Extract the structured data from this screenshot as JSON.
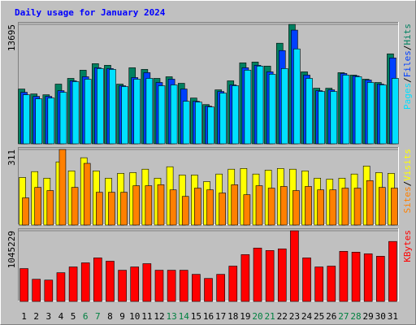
{
  "chart_data": [
    {
      "type": "bar",
      "title": "Daily usage for January 2024",
      "ylim": [
        0,
        13976
      ],
      "yticks": [
        13695
      ],
      "legend_separator": "/",
      "series": [
        {
          "name": "Hits",
          "color": "#008060",
          "values": [
            6285,
            5722,
            5628,
            6847,
            7504,
            8442,
            9192,
            9005,
            6847,
            8723,
            8536,
            7504,
            7692,
            6941,
            5253,
            4502,
            6191,
            7223,
            9286,
            9380,
            8911,
            11537,
            13695,
            8254,
            6378,
            6378,
            8161,
            7879,
            7410,
            7035,
            10318
          ]
        },
        {
          "name": "Files",
          "color": "#0040ff",
          "values": [
            5909,
            5440,
            5440,
            6097,
            7223,
            7692,
            8723,
            8630,
            6660,
            7598,
            8161,
            7035,
            7410,
            6285,
            4878,
            4315,
            6003,
            6754,
            8723,
            9005,
            8254,
            10693,
            13038,
            7879,
            6097,
            6191,
            8067,
            7785,
            7316,
            6847,
            9849
          ]
        },
        {
          "name": "Pages",
          "color": "#00e0ff",
          "values": [
            5628,
            5159,
            5253,
            5909,
            7129,
            7410,
            8630,
            8536,
            6566,
            7410,
            7504,
            6660,
            6754,
            4878,
            4784,
            4221,
            5816,
            6660,
            8442,
            8911,
            7973,
            8630,
            10881,
            7504,
            6003,
            6003,
            7879,
            7692,
            7035,
            6754,
            7504
          ]
        }
      ]
    },
    {
      "type": "bar",
      "ylim": [
        0,
        321
      ],
      "yticks": [
        311
      ],
      "legend_separator": "/",
      "series": [
        {
          "name": "Visits",
          "color": "#ffff00",
          "values": [
            196,
            220,
            193,
            260,
            223,
            277,
            223,
            193,
            213,
            216,
            230,
            193,
            240,
            206,
            206,
            179,
            210,
            230,
            233,
            210,
            226,
            233,
            230,
            223,
            193,
            189,
            193,
            210,
            243,
            216,
            213
          ]
        },
        {
          "name": "Sites",
          "color": "#ff8000",
          "values": [
            112,
            155,
            142,
            311,
            155,
            254,
            135,
            135,
            135,
            162,
            162,
            166,
            145,
            118,
            152,
            145,
            132,
            166,
            125,
            162,
            152,
            159,
            142,
            159,
            145,
            145,
            152,
            152,
            183,
            155,
            152
          ]
        }
      ]
    },
    {
      "type": "bar",
      "ylim": [
        0,
        1081690
      ],
      "yticks": [
        1045229
      ],
      "series": [
        {
          "name": "KBytes",
          "color": "#ff0000",
          "values": [
            486160,
            328158,
            316004,
            425390,
            510468,
            571238,
            644162,
            595546,
            461852,
            510468,
            559084,
            461852,
            461852,
            461852,
            401082,
            340312,
            401082,
            522622,
            692778,
            790010,
            753548,
            777856,
            1045229,
            644162,
            510468,
            522622,
            741394,
            729240,
            704932,
            668470,
            887242
          ]
        }
      ],
      "categories": [
        "1",
        "2",
        "3",
        "4",
        "5",
        "6",
        "7",
        "8",
        "9",
        "10",
        "11",
        "12",
        "13",
        "14",
        "15",
        "16",
        "17",
        "18",
        "19",
        "20",
        "21",
        "22",
        "23",
        "24",
        "25",
        "26",
        "27",
        "28",
        "29",
        "30",
        "31"
      ],
      "tick_label_colors": [
        "#000000",
        "#000000",
        "#000000",
        "#000000",
        "#000000",
        "#008040",
        "#008040",
        "#000000",
        "#000000",
        "#000000",
        "#000000",
        "#000000",
        "#008040",
        "#008040",
        "#000000",
        "#000000",
        "#000000",
        "#000000",
        "#000000",
        "#008040",
        "#008040",
        "#000000",
        "#000000",
        "#000000",
        "#000000",
        "#000000",
        "#008040",
        "#008040",
        "#000000",
        "#000000",
        "#000000"
      ]
    }
  ]
}
